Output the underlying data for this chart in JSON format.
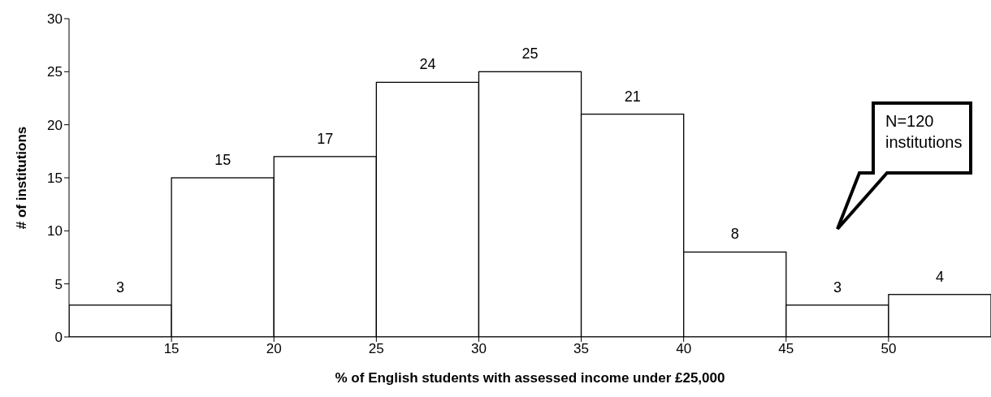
{
  "chart_data": {
    "type": "histogram",
    "xlabel": "% of English students with assessed income under £25,000",
    "ylabel": "# of institutions",
    "bins": [
      10,
      15,
      20,
      25,
      30,
      35,
      40,
      45,
      50,
      55
    ],
    "values": [
      3,
      15,
      17,
      24,
      25,
      21,
      8,
      3,
      4
    ],
    "color": "#ffffff",
    "xlim": [
      10,
      55
    ],
    "xticks": [
      15,
      20,
      25,
      30,
      35,
      40,
      45,
      50
    ],
    "ylim": [
      0,
      30
    ],
    "yticks": [
      0,
      5,
      10,
      15,
      20,
      25,
      30
    ],
    "data_labels": true,
    "grid": false,
    "legend": false,
    "annotations": [
      "N=120 institutions"
    ]
  }
}
